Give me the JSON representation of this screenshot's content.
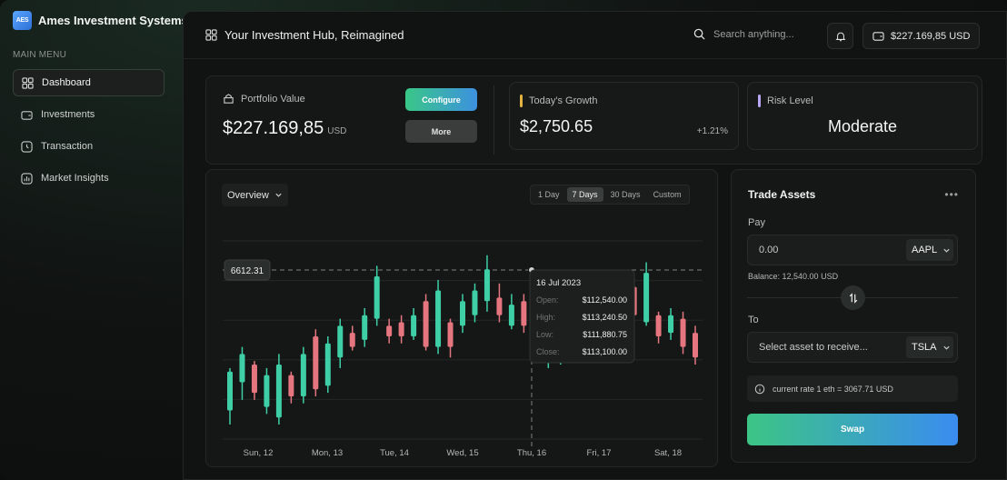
{
  "brand": {
    "logo_text": "AES",
    "name": "Ames Investment Systems"
  },
  "sidebar": {
    "caption": "MAIN MENU",
    "items": [
      {
        "label": "Dashboard",
        "icon": "grid-icon",
        "active": true
      },
      {
        "label": "Investments",
        "icon": "wallet-icon",
        "active": false
      },
      {
        "label": "Transaction",
        "icon": "clock-icon",
        "active": false
      },
      {
        "label": "Market Insights",
        "icon": "chart-icon",
        "active": false
      }
    ]
  },
  "header": {
    "title": "Your Investment Hub, Reimagined",
    "search_placeholder": "Search anything...",
    "balance": "$227.169,85 USD"
  },
  "stats": {
    "portfolio_label": "Portfolio Value",
    "portfolio_value": "$227.169,85",
    "portfolio_currency": "USD",
    "configure_label": "Configure",
    "more_label": "More",
    "growth_label": "Today's Growth",
    "growth_value": "$2,750.65",
    "growth_pct": "+1.21%",
    "growth_color": "#e3b341",
    "risk_label": "Risk Level",
    "risk_value": "Moderate",
    "risk_color": "#b9a7f5"
  },
  "overview": {
    "select_label": "Overview",
    "ranges": [
      "1 Day",
      "7 Days",
      "30 Days",
      "Custom"
    ],
    "active_range": "7 Days"
  },
  "chart_data": {
    "type": "candlestick",
    "x_labels": [
      "Sun, 12",
      "Mon, 13",
      "Tue, 14",
      "Wed, 15",
      "Thu, 16",
      "Fri, 17",
      "Sat, 18"
    ],
    "crosshair_value": "6612.31",
    "up_color": "#3ecfa6",
    "down_color": "#e5767f",
    "candles": [
      {
        "o": 8,
        "c": 30,
        "h": 32,
        "l": 0
      },
      {
        "o": 24,
        "c": 40,
        "h": 44,
        "l": 14
      },
      {
        "o": 34,
        "c": 18,
        "h": 36,
        "l": 14
      },
      {
        "o": 10,
        "c": 28,
        "h": 32,
        "l": 6
      },
      {
        "o": 4,
        "c": 34,
        "h": 40,
        "l": 0
      },
      {
        "o": 28,
        "c": 16,
        "h": 30,
        "l": 12
      },
      {
        "o": 16,
        "c": 40,
        "h": 44,
        "l": 12
      },
      {
        "o": 50,
        "c": 20,
        "h": 54,
        "l": 16
      },
      {
        "o": 22,
        "c": 46,
        "h": 50,
        "l": 18
      },
      {
        "o": 38,
        "c": 56,
        "h": 60,
        "l": 32
      },
      {
        "o": 52,
        "c": 44,
        "h": 56,
        "l": 42
      },
      {
        "o": 48,
        "c": 62,
        "h": 66,
        "l": 44
      },
      {
        "o": 60,
        "c": 84,
        "h": 90,
        "l": 56
      },
      {
        "o": 56,
        "c": 50,
        "h": 60,
        "l": 46
      },
      {
        "o": 58,
        "c": 50,
        "h": 62,
        "l": 46
      },
      {
        "o": 50,
        "c": 62,
        "h": 66,
        "l": 48
      },
      {
        "o": 70,
        "c": 44,
        "h": 74,
        "l": 42
      },
      {
        "o": 44,
        "c": 76,
        "h": 82,
        "l": 40
      },
      {
        "o": 58,
        "c": 44,
        "h": 60,
        "l": 38
      },
      {
        "o": 56,
        "c": 70,
        "h": 74,
        "l": 52
      },
      {
        "o": 62,
        "c": 76,
        "h": 80,
        "l": 58
      },
      {
        "o": 70,
        "c": 88,
        "h": 96,
        "l": 64
      },
      {
        "o": 72,
        "c": 62,
        "h": 80,
        "l": 58
      },
      {
        "o": 56,
        "c": 68,
        "h": 74,
        "l": 54
      },
      {
        "o": 70,
        "c": 56,
        "h": 74,
        "l": 52
      },
      {
        "o": 56,
        "c": 76,
        "h": 80,
        "l": 54
      },
      {
        "o": 36,
        "c": 58,
        "h": 62,
        "l": 32
      },
      {
        "o": 38,
        "c": 70,
        "h": 72,
        "l": 34
      },
      {
        "o": 50,
        "c": 72,
        "h": 76,
        "l": 46
      },
      {
        "o": 48,
        "c": 68,
        "h": 72,
        "l": 44
      },
      {
        "o": 66,
        "c": 50,
        "h": 70,
        "l": 46
      },
      {
        "o": 62,
        "c": 76,
        "h": 80,
        "l": 58
      },
      {
        "o": 62,
        "c": 76,
        "h": 80,
        "l": 58
      },
      {
        "o": 78,
        "c": 62,
        "h": 82,
        "l": 60
      },
      {
        "o": 58,
        "c": 86,
        "h": 92,
        "l": 56
      },
      {
        "o": 62,
        "c": 50,
        "h": 64,
        "l": 46
      },
      {
        "o": 52,
        "c": 62,
        "h": 66,
        "l": 48
      },
      {
        "o": 60,
        "c": 44,
        "h": 64,
        "l": 40
      },
      {
        "o": 52,
        "c": 38,
        "h": 56,
        "l": 34
      }
    ],
    "tooltip": {
      "date": "16 Jul 2023",
      "rows": [
        {
          "label": "Open:",
          "value": "$112,540.00"
        },
        {
          "label": "High:",
          "value": "$113,240.50"
        },
        {
          "label": "Low:",
          "value": "$111,880.75"
        },
        {
          "label": "Close:",
          "value": "$113,100.00"
        }
      ]
    }
  },
  "trade": {
    "title": "Trade Assets",
    "pay_label": "Pay",
    "pay_value": "0.00",
    "pay_asset": "AAPL",
    "balance_note": "Balance: 12,540.00 USD",
    "to_label": "To",
    "to_placeholder": "Select asset to receive...",
    "to_asset": "TSLA",
    "rate_text": "current rate 1 eth = 3067.71 USD",
    "swap_label": "Swap"
  }
}
